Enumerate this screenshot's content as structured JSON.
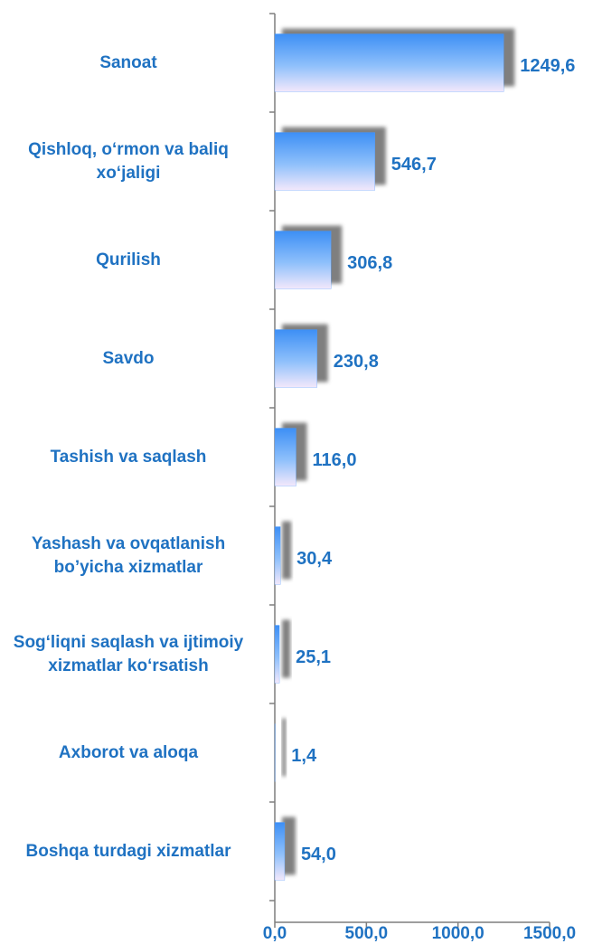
{
  "chart_data": {
    "type": "bar",
    "orientation": "horizontal",
    "categories": [
      "Sanoat",
      "Qishloq, o‘rmon va baliq xo‘jaligi",
      "Qurilish",
      "Savdo",
      "Tashish va saqlash",
      "Yashash va ovqatlanish bo’yicha xizmatlar",
      "Sog‘liqni saqlash va ijtimoiy xizmatlar ko‘rsatish",
      "Axborot va aloqa",
      "Boshqa turdagi xizmatlar"
    ],
    "values": [
      1249.6,
      546.7,
      306.8,
      230.8,
      116.0,
      30.4,
      25.1,
      1.4,
      54.0
    ],
    "value_labels": [
      "1249,6",
      "546,7",
      "306,8",
      "230,8",
      "116,0",
      "30,4",
      "25,1",
      "1,4",
      "54,0"
    ],
    "color": "#4d9bff",
    "xlim": [
      0,
      1500
    ],
    "xticks": [
      {
        "value": 0,
        "label": "0,0"
      },
      {
        "value": 500,
        "label": "500,0"
      },
      {
        "value": 1000,
        "label": "1000,0"
      },
      {
        "value": 1500,
        "label": "1500,0"
      }
    ]
  }
}
